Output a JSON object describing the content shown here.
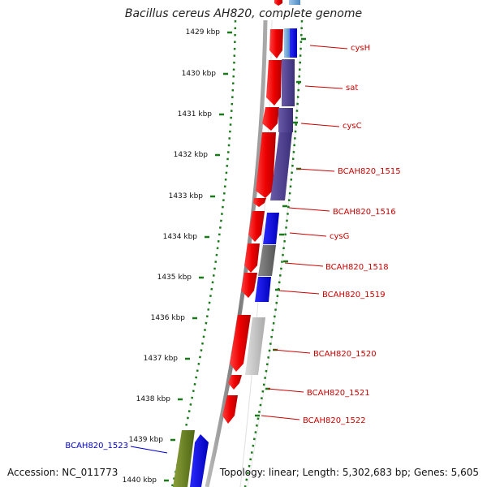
{
  "title": "Bacillus cereus AH820, complete genome",
  "accession": "Accession: NC_011773",
  "summary": "Topology: linear; Length: 5,302,683 bp; Genes: 5,605",
  "colors": {
    "axis_tick": "#1a7a1a",
    "label_red": "#cc0000",
    "label_blue": "#0000cc",
    "backbone": "#888888"
  },
  "ruler": [
    "1429 kbp",
    "1430 kbp",
    "1431 kbp",
    "1432 kbp",
    "1433 kbp",
    "1434 kbp",
    "1435 kbp",
    "1436 kbp",
    "1437 kbp",
    "1438 kbp",
    "1439 kbp",
    "1440 kbp"
  ],
  "genes": [
    {
      "name": "cysH",
      "color": "#cc0000"
    },
    {
      "name": "sat",
      "color": "#cc0000"
    },
    {
      "name": "cysC",
      "color": "#cc0000"
    },
    {
      "name": "BCAH820_1515",
      "color": "#cc0000"
    },
    {
      "name": "BCAH820_1516",
      "color": "#cc0000"
    },
    {
      "name": "cysG",
      "color": "#cc0000"
    },
    {
      "name": "BCAH820_1518",
      "color": "#cc0000"
    },
    {
      "name": "BCAH820_1519",
      "color": "#cc0000"
    },
    {
      "name": "BCAH820_1520",
      "color": "#cc0000"
    },
    {
      "name": "BCAH820_1521",
      "color": "#cc0000"
    },
    {
      "name": "BCAH820_1522",
      "color": "#cc0000"
    },
    {
      "name": "BCAH820_1523",
      "color": "#0000cc"
    }
  ]
}
